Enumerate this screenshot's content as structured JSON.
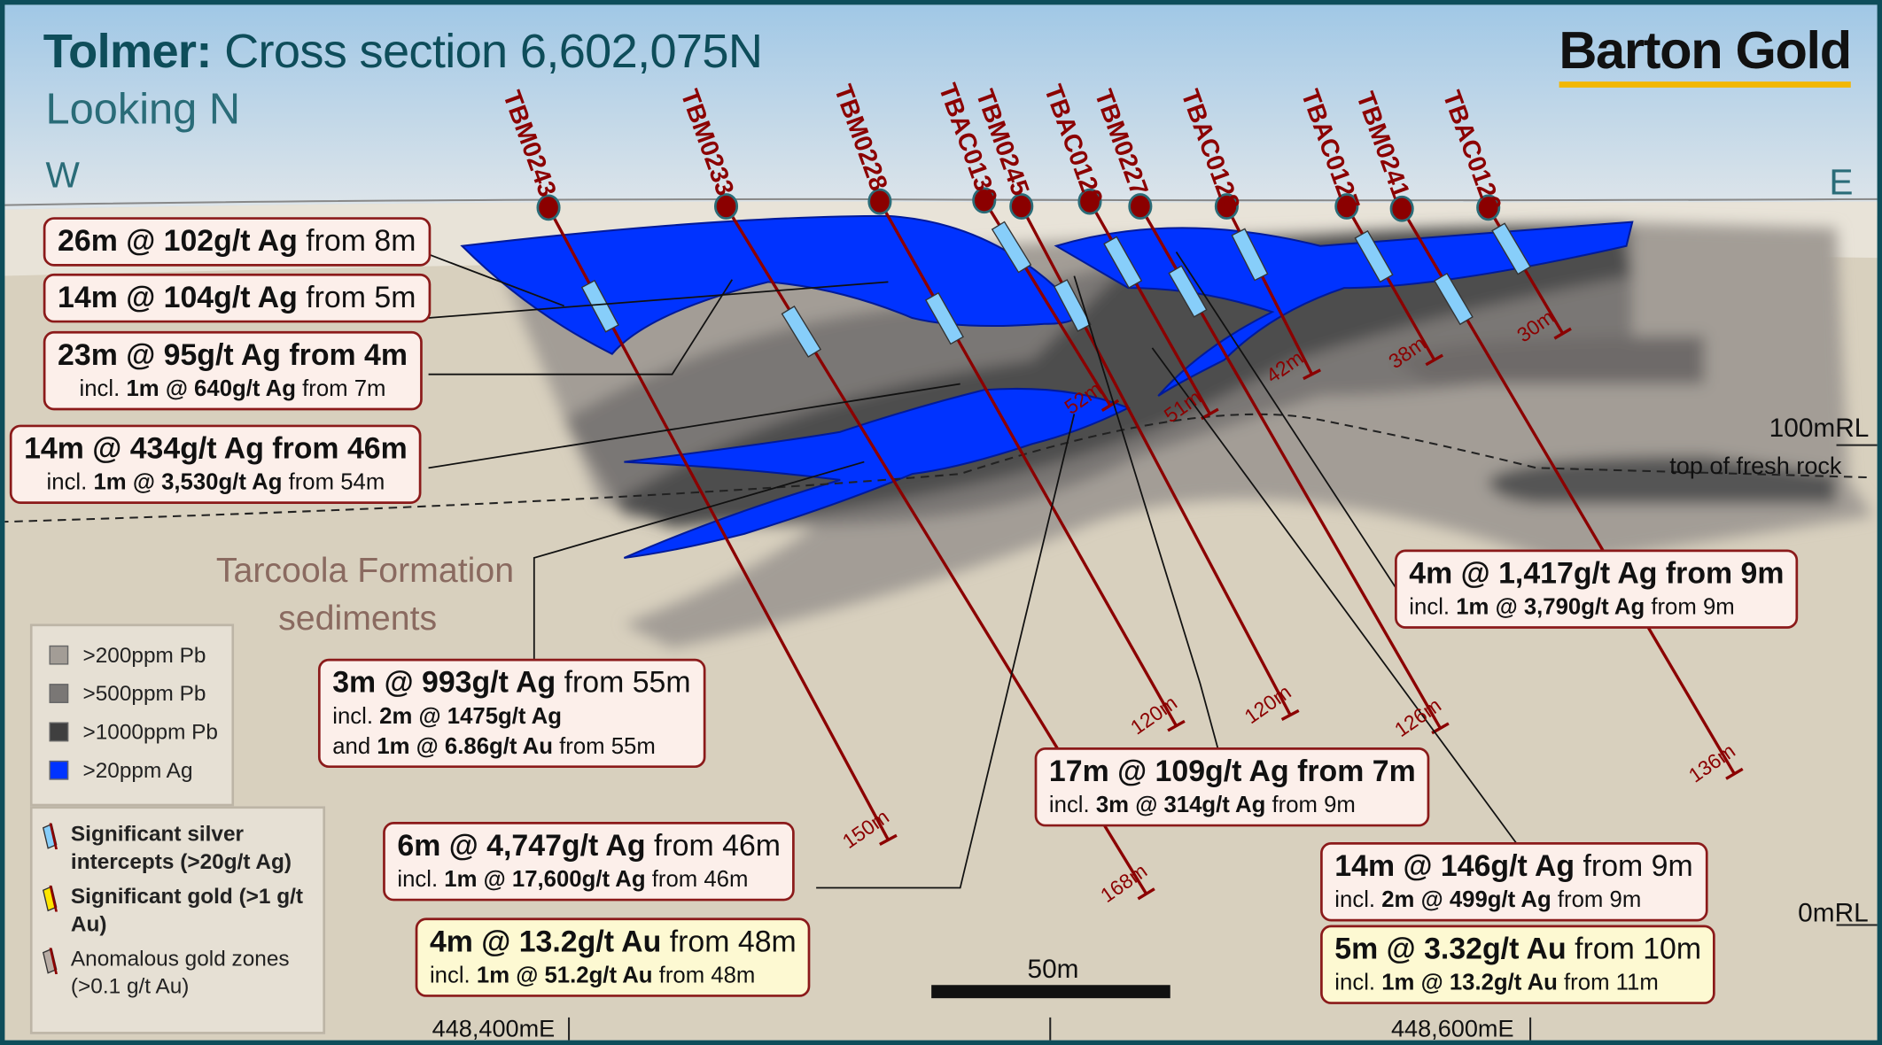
{
  "header": {
    "title_bold": "Tolmer:",
    "title_rest": " Cross section 6,602,075N",
    "subtitle": "Looking N",
    "west": "W",
    "east": "E",
    "brand": "Barton Gold"
  },
  "colors": {
    "frame": "#0e4d5a",
    "hole": "#8b0000",
    "silver_zone": "#0033ff",
    "silver_intercept": "#87cefa",
    "gold": "#ffe600",
    "anomalous_gold": "#b8aca4",
    "pb200": "#a39d96",
    "pb500": "#7a7775",
    "pb1000": "#4d4d4d",
    "brand_underline": "#f2b705"
  },
  "drillholes": [
    {
      "name": "TBM0243",
      "depth": "150m"
    },
    {
      "name": "TBM0233",
      "depth": "168m"
    },
    {
      "name": "TBM0228",
      "depth": "120m"
    },
    {
      "name": "TBAC0130",
      "depth": "52m"
    },
    {
      "name": "TBM0245",
      "depth": "120m"
    },
    {
      "name": "TBAC0129",
      "depth": "51m"
    },
    {
      "name": "TBM0227",
      "depth": "126m"
    },
    {
      "name": "TBAC0128",
      "depth": "42m"
    },
    {
      "name": "TBAC0127",
      "depth": "38m"
    },
    {
      "name": "TBM0241",
      "depth": "136m"
    },
    {
      "name": "TBAC0126",
      "depth": "30m"
    }
  ],
  "callouts": [
    {
      "kind": "silver",
      "lines": [
        [
          {
            "t": "26m @ 102g/t Ag",
            "b": true
          },
          {
            "t": " from 8m"
          }
        ]
      ]
    },
    {
      "kind": "silver",
      "lines": [
        [
          {
            "t": "14m @ 104g/t Ag",
            "b": true
          },
          {
            "t": " from 5m"
          }
        ]
      ]
    },
    {
      "kind": "silver",
      "lines": [
        [
          {
            "t": "23m @ 95g/t Ag from 4m",
            "b": true
          }
        ],
        [
          {
            "t": "incl. "
          },
          {
            "t": "1m @ 640g/t Ag",
            "b": true
          },
          {
            "t": " from 7m"
          }
        ]
      ]
    },
    {
      "kind": "silver",
      "lines": [
        [
          {
            "t": "14m @ 434g/t Ag from 46m",
            "b": true
          }
        ],
        [
          {
            "t": "incl. "
          },
          {
            "t": "1m @ 3,530g/t Ag",
            "b": true
          },
          {
            "t": " from 54m"
          }
        ]
      ]
    },
    {
      "kind": "silver",
      "lines": [
        [
          {
            "t": "3m @ 993g/t Ag",
            "b": true
          },
          {
            "t": " from 55m"
          }
        ],
        [
          {
            "t": "incl. "
          },
          {
            "t": "2m @ 1475g/t Ag",
            "b": true
          }
        ],
        [
          {
            "t": "and "
          },
          {
            "t": "1m @ 6.86g/t Au",
            "b": true
          },
          {
            "t": " from 55m"
          }
        ]
      ]
    },
    {
      "kind": "silver",
      "lines": [
        [
          {
            "t": "6m @ 4,747g/t Ag",
            "b": true
          },
          {
            "t": " from 46m"
          }
        ],
        [
          {
            "t": "incl. "
          },
          {
            "t": "1m @ 17,600g/t Ag",
            "b": true
          },
          {
            "t": " from 46m"
          }
        ]
      ]
    },
    {
      "kind": "gold",
      "lines": [
        [
          {
            "t": "4m @ 13.2g/t Au",
            "b": true
          },
          {
            "t": " from 48m"
          }
        ],
        [
          {
            "t": "incl. "
          },
          {
            "t": "1m @ 51.2g/t Au",
            "b": true
          },
          {
            "t": " from 48m"
          }
        ]
      ]
    },
    {
      "kind": "silver",
      "lines": [
        [
          {
            "t": "17m @ 109g/t Ag from 7m",
            "b": true
          }
        ],
        [
          {
            "t": "incl. "
          },
          {
            "t": "3m @ 314g/t Ag",
            "b": true
          },
          {
            "t": " from 9m"
          }
        ]
      ]
    },
    {
      "kind": "silver",
      "lines": [
        [
          {
            "t": "4m @ 1,417g/t Ag from 9m",
            "b": true
          }
        ],
        [
          {
            "t": "incl. "
          },
          {
            "t": "1m @ 3,790g/t Ag",
            "b": true
          },
          {
            "t": " from 9m"
          }
        ]
      ]
    },
    {
      "kind": "silver",
      "lines": [
        [
          {
            "t": "14m @ 146g/t Ag",
            "b": true
          },
          {
            "t": " from 9m"
          }
        ],
        [
          {
            "t": "incl. "
          },
          {
            "t": "2m @ 499g/t Ag",
            "b": true
          },
          {
            "t": " from 9m"
          }
        ]
      ]
    },
    {
      "kind": "gold",
      "lines": [
        [
          {
            "t": "5m @ 3.32g/t Au",
            "b": true
          },
          {
            "t": " from 10m"
          }
        ],
        [
          {
            "t": "incl. "
          },
          {
            "t": "1m @ 13.2g/t Au",
            "b": true
          },
          {
            "t": " from 11m"
          }
        ]
      ]
    }
  ],
  "labels": {
    "formation_line1": "Tarcoola Formation",
    "formation_line2": "sediments",
    "rl100": "100mRL",
    "rl0": "0mRL",
    "fresh_rock": "top of fresh rock",
    "scale": "50m",
    "easting1": "448,400mE",
    "easting2": "448,600mE"
  },
  "legend": {
    "items": [
      {
        "label": ">200ppm Pb"
      },
      {
        "label": ">500ppm Pb"
      },
      {
        "label": ">1000ppm Pb"
      },
      {
        "label": ">20ppm Ag"
      }
    ],
    "symbols": [
      {
        "bold": "Significant silver intercepts",
        "rest": " (>20g/t Ag)"
      },
      {
        "bold": "Significant gold",
        "rest": " (>1 g/t Au)"
      },
      {
        "bold": "",
        "rest": "Anomalous gold zones (>0.1 g/t Au)"
      }
    ]
  }
}
